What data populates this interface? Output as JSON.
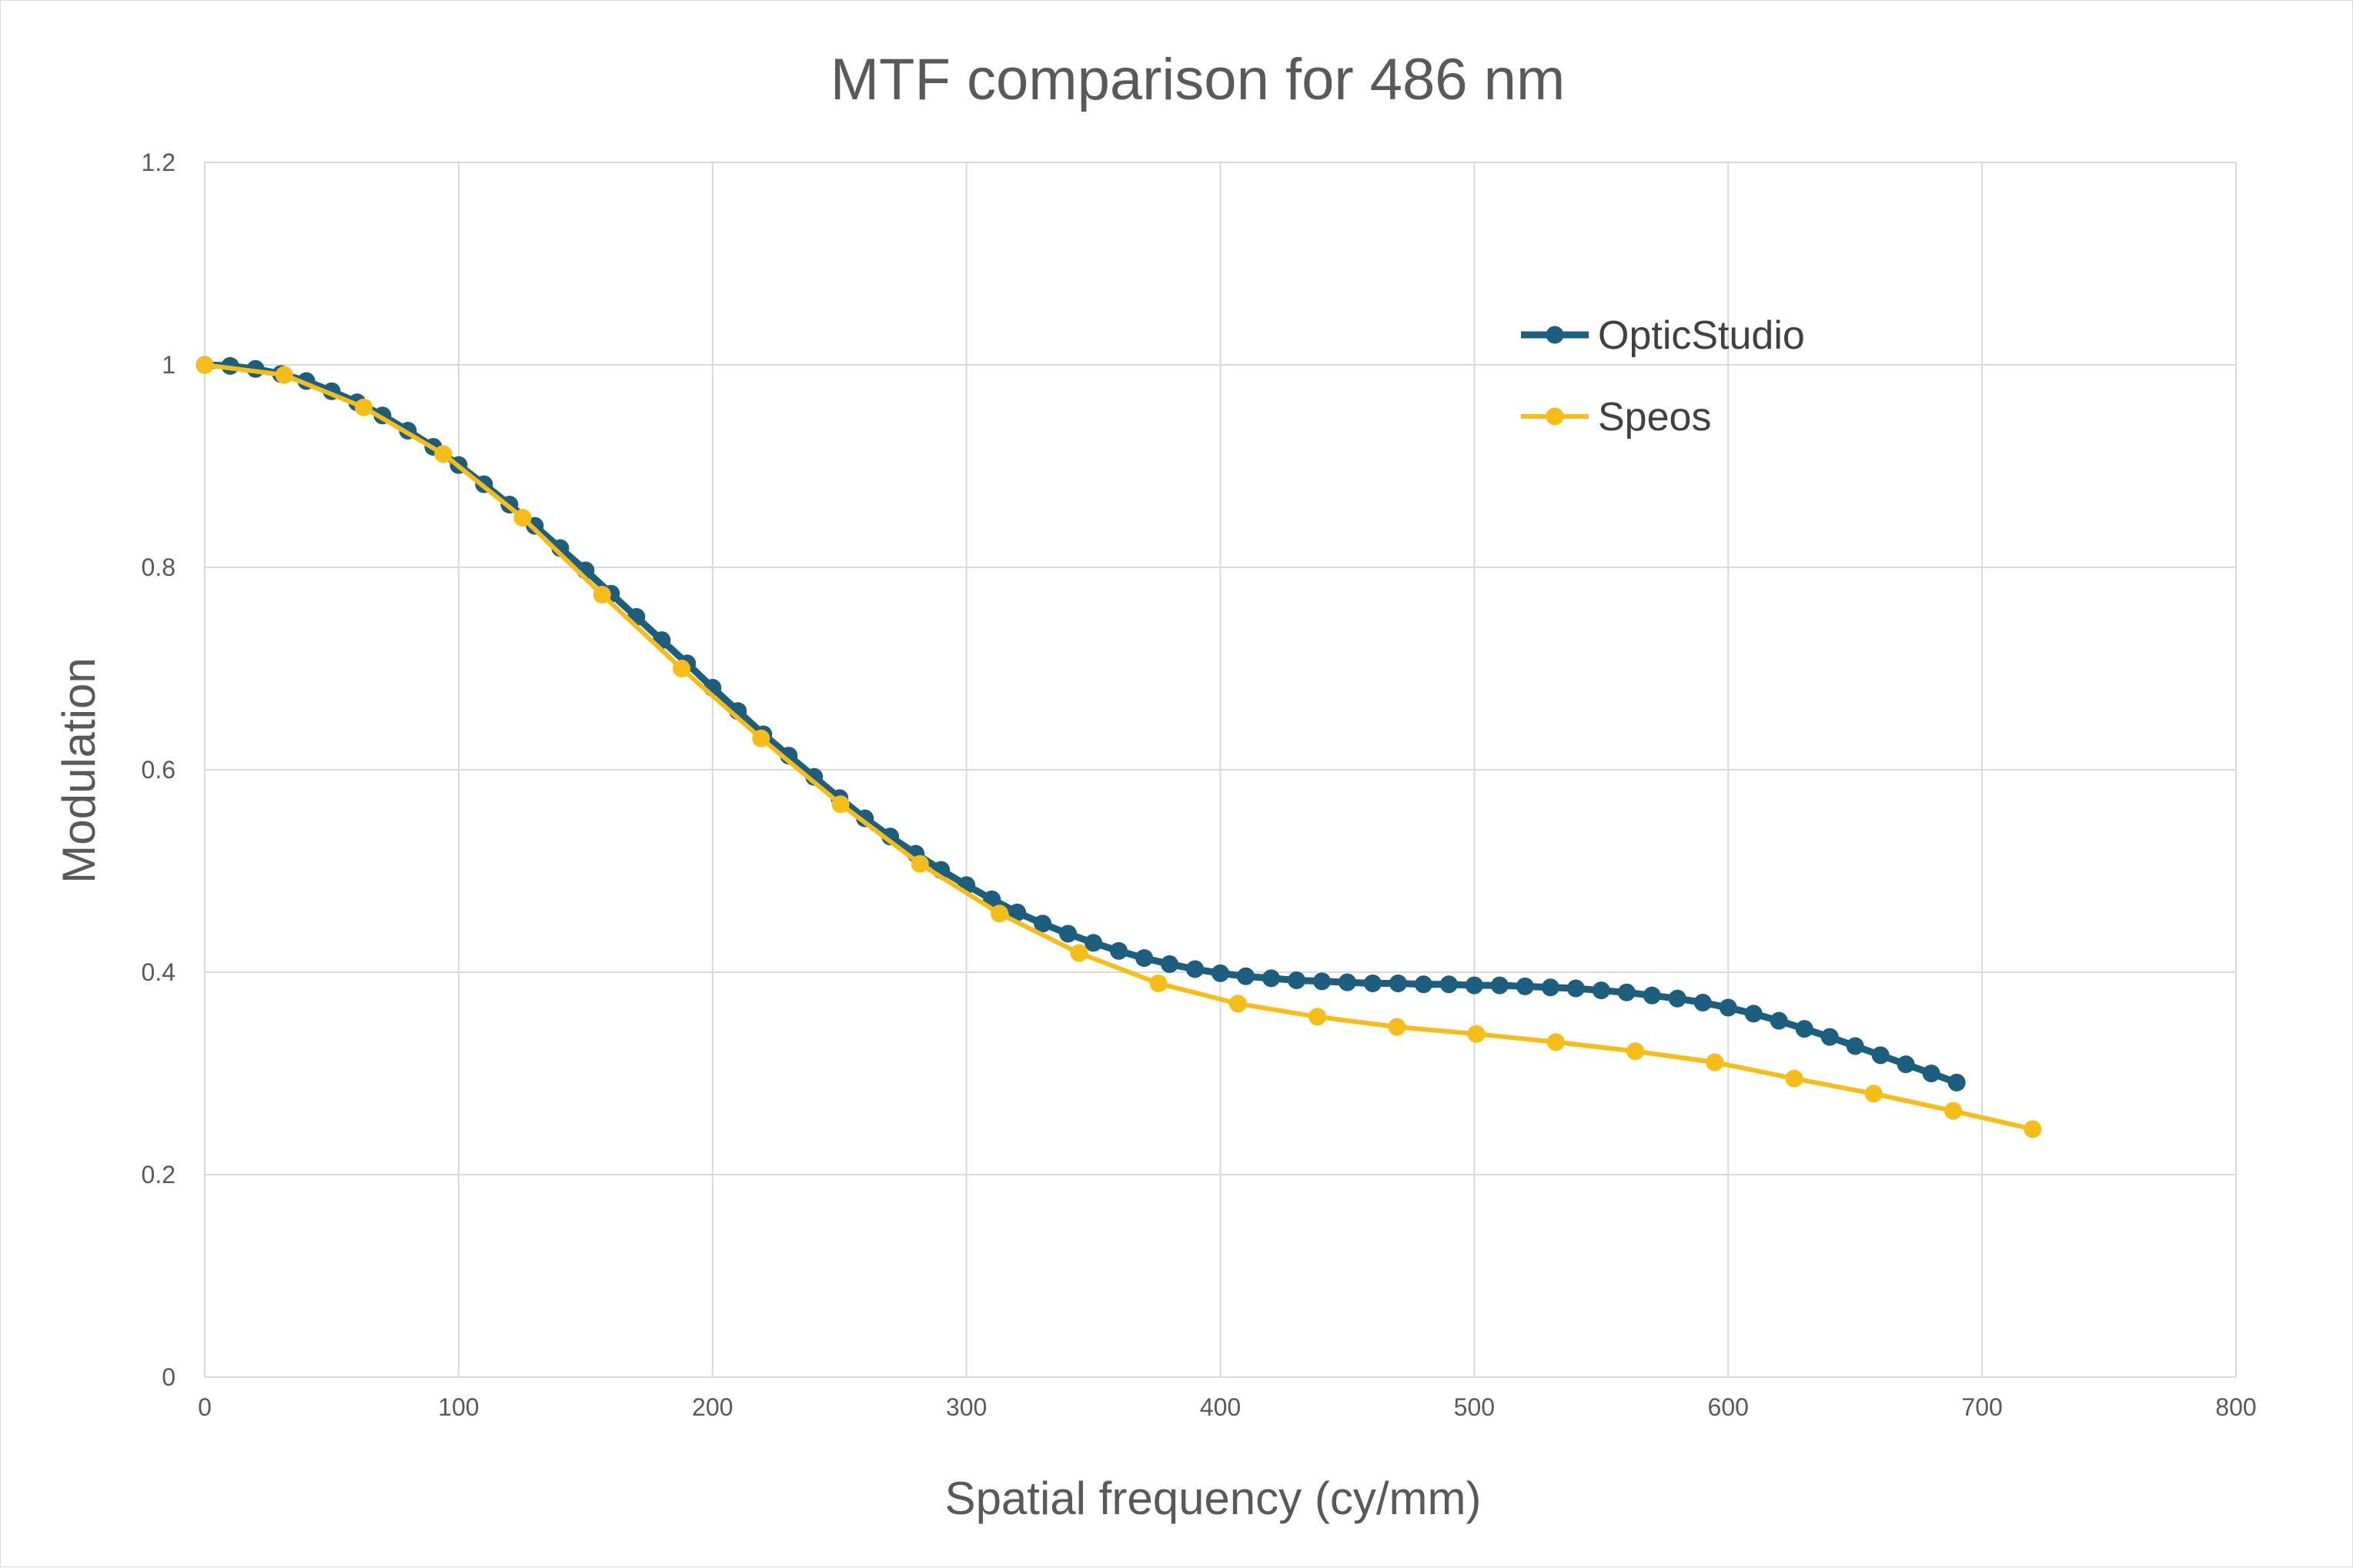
{
  "colors": {
    "grid": "#d9d9d9",
    "text": "#595959",
    "opticstudio": "#1b5e7e",
    "speos": "#f7bd16"
  },
  "chart_data": {
    "type": "line",
    "title": "MTF comparison for 486 nm",
    "xlabel": "Spatial frequency (cy/mm)",
    "ylabel": "Modulation",
    "xlim": [
      0,
      800
    ],
    "ylim": [
      0,
      1.2
    ],
    "x_ticks": [
      "0",
      "100",
      "200",
      "300",
      "400",
      "500",
      "600",
      "700",
      "800"
    ],
    "y_ticks": [
      "0",
      "0.2",
      "0.4",
      "0.6",
      "0.8",
      "1",
      "1.2"
    ],
    "grid": true,
    "legend_position": "top-right",
    "series": [
      {
        "name": "OpticStudio",
        "color": "#1b5e7e",
        "x": [
          0,
          10,
          20,
          30,
          40,
          50,
          60,
          70,
          80,
          90,
          100,
          110,
          120,
          130,
          140,
          150,
          160,
          170,
          180,
          190,
          200,
          210,
          220,
          230,
          240,
          250,
          260,
          270,
          280,
          290,
          300,
          310,
          320,
          330,
          340,
          350,
          360,
          370,
          380,
          390,
          400,
          410,
          420,
          430,
          440,
          450,
          460,
          470,
          480,
          490,
          500,
          510,
          520,
          530,
          540,
          550,
          560,
          570,
          580,
          590,
          600,
          610,
          620,
          630,
          640,
          650,
          660,
          670,
          680,
          690
        ],
        "y": [
          1.0,
          0.999,
          0.996,
          0.991,
          0.984,
          0.974,
          0.963,
          0.95,
          0.935,
          0.919,
          0.901,
          0.882,
          0.862,
          0.841,
          0.819,
          0.797,
          0.774,
          0.751,
          0.728,
          0.705,
          0.681,
          0.658,
          0.635,
          0.614,
          0.593,
          0.572,
          0.552,
          0.534,
          0.517,
          0.501,
          0.486,
          0.472,
          0.459,
          0.448,
          0.438,
          0.429,
          0.421,
          0.414,
          0.408,
          0.403,
          0.399,
          0.396,
          0.394,
          0.392,
          0.391,
          0.39,
          0.389,
          0.389,
          0.388,
          0.388,
          0.387,
          0.387,
          0.386,
          0.385,
          0.384,
          0.382,
          0.38,
          0.377,
          0.374,
          0.37,
          0.365,
          0.359,
          0.352,
          0.344,
          0.336,
          0.327,
          0.318,
          0.309,
          0.3,
          0.291
        ]
      },
      {
        "name": "Speos",
        "color": "#f7bd16",
        "x": [
          0,
          31.3,
          62.6,
          93.9,
          125.2,
          156.5,
          187.8,
          219.1,
          250.4,
          281.7,
          313,
          344.3,
          375.6,
          406.9,
          438.2,
          469.5,
          500.8,
          532.1,
          563.4,
          594.7,
          626,
          657.3,
          688.6,
          719.9
        ],
        "y": [
          1.0,
          0.99,
          0.958,
          0.912,
          0.849,
          0.773,
          0.7,
          0.631,
          0.566,
          0.507,
          0.458,
          0.419,
          0.389,
          0.369,
          0.356,
          0.346,
          0.339,
          0.331,
          0.322,
          0.311,
          0.295,
          0.28,
          0.263,
          0.245
        ]
      }
    ]
  }
}
